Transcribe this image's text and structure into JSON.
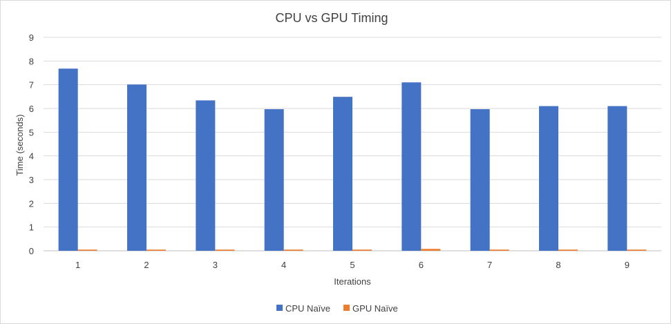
{
  "chart_data": {
    "type": "bar",
    "title": "CPU vs GPU Timing",
    "xlabel": "Iterations",
    "ylabel": "Time (seconds)",
    "categories": [
      "1",
      "2",
      "3",
      "4",
      "5",
      "6",
      "7",
      "8",
      "9"
    ],
    "ylim": [
      0,
      9
    ],
    "yticks": [
      0,
      1,
      2,
      3,
      4,
      5,
      6,
      7,
      8,
      9
    ],
    "grid": true,
    "legend_position": "bottom",
    "series": [
      {
        "name": "CPU Naïve",
        "color": "#4472c4",
        "values": [
          7.68,
          7.01,
          6.34,
          5.97,
          6.49,
          7.1,
          5.97,
          6.1,
          6.1
        ]
      },
      {
        "name": "GPU Naïve",
        "color": "#ed7d31",
        "values": [
          0.05,
          0.05,
          0.05,
          0.05,
          0.05,
          0.08,
          0.05,
          0.05,
          0.05
        ]
      }
    ]
  }
}
